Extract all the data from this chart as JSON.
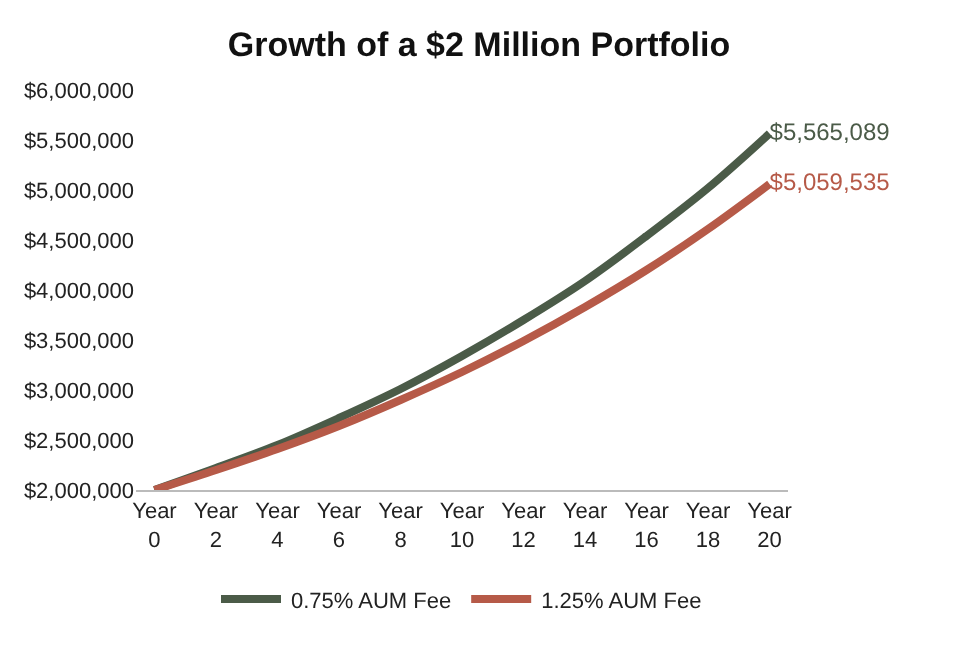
{
  "chart_data": {
    "type": "line",
    "title": "Growth of a $2 Million Portfolio",
    "categories": [
      "Year 0",
      "Year 2",
      "Year 4",
      "Year 6",
      "Year 8",
      "Year 10",
      "Year 12",
      "Year 14",
      "Year 16",
      "Year 18",
      "Year 20"
    ],
    "series": [
      {
        "name": "0.75% AUM Fee",
        "color": "#4b5b48",
        "values": [
          2000000,
          2220000,
          2450000,
          2720000,
          3010000,
          3340000,
          3700000,
          4090000,
          4540000,
          5020000,
          5565089
        ],
        "value_labels": [
          null,
          null,
          null,
          null,
          null,
          null,
          null,
          null,
          null,
          null,
          "$5,565,089"
        ]
      },
      {
        "name": "1.25% AUM Fee",
        "color": "#b65a48",
        "values": [
          2000000,
          2200000,
          2410000,
          2640000,
          2900000,
          3180000,
          3490000,
          3830000,
          4200000,
          4610000,
          5059535
        ],
        "value_labels": [
          null,
          null,
          null,
          null,
          null,
          null,
          null,
          null,
          null,
          null,
          "$5,059,535"
        ]
      }
    ],
    "ylim": [
      2000000,
      6000000
    ],
    "yticks": [
      {
        "value": 2000000,
        "label": "$2,000,000"
      },
      {
        "value": 2500000,
        "label": "$2,500,000"
      },
      {
        "value": 3000000,
        "label": "$3,000,000"
      },
      {
        "value": 3500000,
        "label": "$3,500,000"
      },
      {
        "value": 4000000,
        "label": "$4,000,000"
      },
      {
        "value": 4500000,
        "label": "$4,500,000"
      },
      {
        "value": 5000000,
        "label": "$5,000,000"
      },
      {
        "value": 5500000,
        "label": "$5,500,000"
      },
      {
        "value": 6000000,
        "label": "$6,000,000"
      }
    ],
    "legend": "bottom",
    "marker": "none",
    "line_style": "solid"
  }
}
